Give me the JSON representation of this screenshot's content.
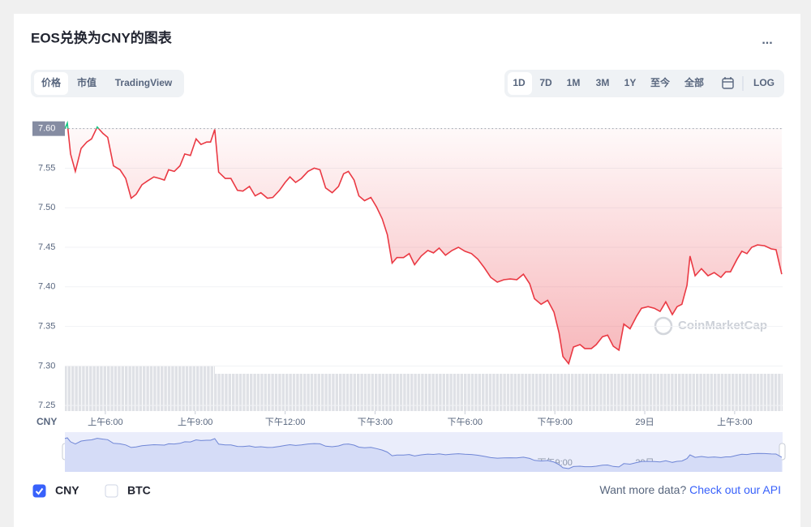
{
  "header": {
    "title": "EOS兑换为CNY的图表",
    "menu": "..."
  },
  "tabs": [
    "价格",
    "市值",
    "TradingView"
  ],
  "ranges": [
    "1D",
    "7D",
    "1M",
    "3M",
    "1Y",
    "至今",
    "全部"
  ],
  "log_button": "LOG",
  "footer": {
    "question": "Want more data?",
    "link": "Check out our API"
  },
  "chart_data": {
    "type": "line",
    "unit_label": "CNY",
    "watermark": "CoinMarketCap",
    "x": [
      4.65,
      4.73,
      4.84,
      5.0,
      5.19,
      5.38,
      5.54,
      5.73,
      5.92,
      6.08,
      6.27,
      6.49,
      6.68,
      6.86,
      7.03,
      7.22,
      7.41,
      7.62,
      7.81,
      7.97,
      8.11,
      8.3,
      8.49,
      8.65,
      8.84,
      9.03,
      9.19,
      9.38,
      9.51,
      9.65,
      9.78,
      10.0,
      10.19,
      10.41,
      10.59,
      10.81,
      11.0,
      11.19,
      11.41,
      11.59,
      11.81,
      12.0,
      12.16,
      12.35,
      12.54,
      12.76,
      12.97,
      13.16,
      13.35,
      13.57,
      13.78,
      13.95,
      14.11,
      14.3,
      14.46,
      14.65,
      14.86,
      15.05,
      15.24,
      15.41,
      15.57,
      15.73,
      15.95,
      16.14,
      16.32,
      16.54,
      16.76,
      16.95,
      17.14,
      17.35,
      17.57,
      17.78,
      18.0,
      18.22,
      18.43,
      18.65,
      18.86,
      19.08,
      19.3,
      19.51,
      19.73,
      19.95,
      20.16,
      20.32,
      20.54,
      20.76,
      20.97,
      21.14,
      21.27,
      21.46,
      21.62,
      21.84,
      22.0,
      22.22,
      22.38,
      22.59,
      22.76,
      22.95,
      23.14,
      23.3,
      23.51,
      23.73,
      23.89,
      24.11,
      24.32,
      24.51,
      24.7,
      24.92,
      25.08,
      25.24,
      25.41,
      25.51,
      25.68,
      25.89,
      26.11,
      26.32,
      26.54,
      26.7,
      26.86,
      27.08,
      27.24,
      27.41,
      27.57,
      27.76,
      28.0,
      28.22,
      28.38,
      28.57
    ],
    "series": [
      {
        "name": "CNY",
        "checked": true,
        "color": "#ea3943",
        "values": [
          7.6,
          7.607,
          7.568,
          7.546,
          7.575,
          7.583,
          7.587,
          7.602,
          7.594,
          7.589,
          7.553,
          7.548,
          7.537,
          7.512,
          7.517,
          7.529,
          7.534,
          7.539,
          7.537,
          7.535,
          7.548,
          7.546,
          7.553,
          7.568,
          7.566,
          7.587,
          7.58,
          7.583,
          7.583,
          7.599,
          7.545,
          7.537,
          7.537,
          7.522,
          7.521,
          7.527,
          7.515,
          7.519,
          7.512,
          7.513,
          7.522,
          7.532,
          7.539,
          7.532,
          7.537,
          7.546,
          7.55,
          7.548,
          7.525,
          7.519,
          7.527,
          7.543,
          7.546,
          7.535,
          7.515,
          7.509,
          7.513,
          7.501,
          7.486,
          7.466,
          7.43,
          7.437,
          7.437,
          7.442,
          7.428,
          7.439,
          7.446,
          7.443,
          7.449,
          7.44,
          7.446,
          7.45,
          7.445,
          7.442,
          7.435,
          7.424,
          7.412,
          7.406,
          7.409,
          7.41,
          7.409,
          7.416,
          7.404,
          7.385,
          7.378,
          7.383,
          7.368,
          7.342,
          7.312,
          7.303,
          7.324,
          7.327,
          7.322,
          7.322,
          7.327,
          7.337,
          7.339,
          7.325,
          7.32,
          7.353,
          7.347,
          7.363,
          7.373,
          7.375,
          7.373,
          7.369,
          7.381,
          7.365,
          7.375,
          7.378,
          7.402,
          7.439,
          7.414,
          7.423,
          7.414,
          7.418,
          7.412,
          7.419,
          7.419,
          7.435,
          7.445,
          7.442,
          7.45,
          7.453,
          7.452,
          7.448,
          7.447,
          7.416
        ]
      }
    ],
    "compare": {
      "name": "BTC",
      "checked": false
    },
    "up_color": "#16c784",
    "baseline": 7.6,
    "xlim": [
      4.65,
      28.6
    ],
    "xticks": [
      {
        "value": 6,
        "label": "上午6:00"
      },
      {
        "value": 9,
        "label": "上午9:00"
      },
      {
        "value": 12,
        "label": "下午12:00"
      },
      {
        "value": 15,
        "label": "下午3:00"
      },
      {
        "value": 18,
        "label": "下午6:00"
      },
      {
        "value": 21,
        "label": "下午9:00"
      },
      {
        "value": 24,
        "label": "29日"
      },
      {
        "value": 27,
        "label": "上午3:00"
      }
    ],
    "ylim": [
      7.243,
      7.614
    ],
    "yticks": [
      7.25,
      {
        "value": 7.3,
        "label": "7.30"
      },
      7.35,
      {
        "value": 7.4,
        "label": "7.40"
      },
      7.45,
      {
        "value": 7.5,
        "label": "7.50"
      },
      7.55,
      {
        "value": 7.6,
        "label": "7.60"
      }
    ],
    "grid": true
  }
}
